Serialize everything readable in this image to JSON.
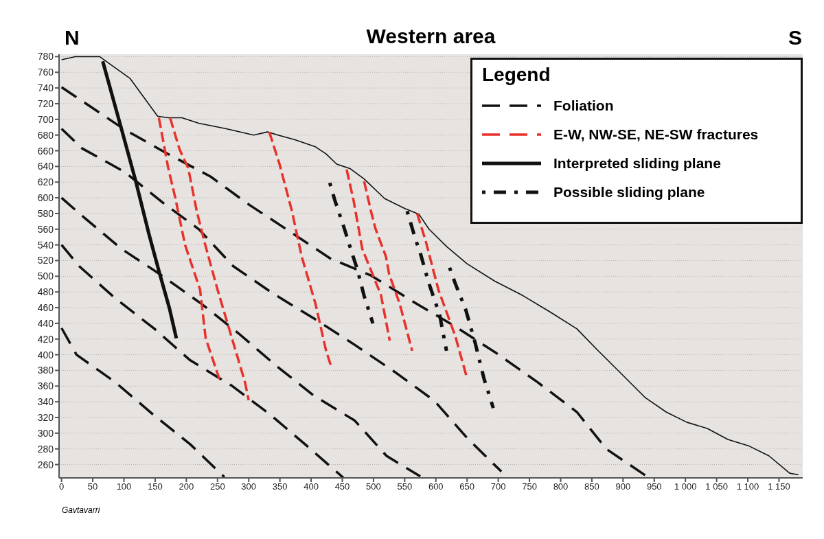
{
  "chart_data": {
    "type": "line",
    "title": "Western area",
    "legend_title": "Legend",
    "annotations": [
      "N",
      "S",
      "Gavtavarri"
    ],
    "xlim": [
      -4,
      1188
    ],
    "ylim": [
      243,
      783
    ],
    "xticks": [
      0,
      50,
      100,
      150,
      200,
      250,
      300,
      350,
      400,
      450,
      500,
      550,
      600,
      650,
      700,
      750,
      800,
      850,
      900,
      950,
      {
        "value": 1000,
        "label": "1 000"
      },
      {
        "value": 1050,
        "label": "1 050"
      },
      {
        "value": 1100,
        "label": "1 100"
      },
      {
        "value": 1150,
        "label": "1 150"
      }
    ],
    "yticks": [
      260,
      280,
      300,
      320,
      340,
      360,
      380,
      400,
      420,
      440,
      460,
      480,
      500,
      520,
      540,
      560,
      580,
      600,
      620,
      640,
      660,
      680,
      700,
      720,
      740,
      760,
      780
    ],
    "grid": "y",
    "legend": "top right",
    "marker": "none",
    "series": [
      {
        "type": "line",
        "color": "#111111",
        "line_style": "solid",
        "x": [
          0,
          22,
          61,
          75,
          110,
          154,
          171,
          193,
          220,
          264,
          308,
          330,
          347,
          374,
          407,
          424,
          441,
          463,
          485,
          518,
          551,
          573,
          589,
          617,
          650,
          694,
          738,
          782,
          826,
          859,
          892,
          936,
          969,
          1002,
          1035,
          1068,
          1101,
          1134,
          1167,
          1181
        ],
        "values": [
          776,
          780,
          780,
          772,
          752,
          704,
          702,
          702,
          695,
          688,
          680,
          684,
          680,
          674,
          665,
          656,
          643,
          637,
          624,
          599,
          586,
          579,
          560,
          538,
          516,
          494,
          476,
          455,
          433,
          406,
          380,
          345,
          327,
          314,
          306,
          292,
          284,
          271,
          249,
          247
        ]
      },
      {
        "type": "line",
        "name": "Foliation",
        "color": "#111111",
        "line_style": "dashed",
        "x": [
          0,
          101,
          168,
          239,
          301,
          366,
          430,
          496,
          567,
          633,
          697,
          763,
          826,
          873,
          938
        ],
        "values": [
          741,
          687,
          657,
          627,
          591,
          557,
          523,
          501,
          466,
          435,
          402,
          365,
          327,
          280,
          245
        ]
      },
      {
        "type": "line",
        "color": "#111111",
        "line_style": "dashed",
        "x": [
          0,
          33,
          101,
          162,
          220,
          275,
          339,
          405,
          471,
          536,
          598,
          650,
          705
        ],
        "values": [
          688,
          663,
          633,
          594,
          560,
          513,
          478,
          446,
          412,
          377,
          341,
          294,
          251
        ]
      },
      {
        "type": "line",
        "color": "#111111",
        "line_style": "dashed",
        "x": [
          0,
          36,
          96,
          157,
          224,
          284,
          344,
          404,
          470,
          521,
          575
        ],
        "values": [
          600,
          575,
          535,
          503,
          465,
          427,
          386,
          348,
          316,
          271,
          245
        ]
      },
      {
        "type": "line",
        "color": "#111111",
        "line_style": "dashed",
        "x": [
          0,
          28,
          86,
          149,
          206,
          272,
          334,
          393,
          452
        ],
        "values": [
          540,
          513,
          472,
          433,
          393,
          361,
          324,
          284,
          243
        ]
      },
      {
        "type": "line",
        "color": "#111111",
        "line_style": "dashed",
        "x": [
          0,
          24,
          86,
          145,
          206,
          261
        ],
        "values": [
          434,
          400,
          365,
          325,
          286,
          244
        ]
      },
      {
        "type": "line",
        "name": "E-W, NW-SE, NE-SW fractures",
        "color": "#e8312a",
        "line_style": "dashed",
        "x": [
          156,
          171,
          182,
          198,
          222,
          231,
          253
        ],
        "values": [
          702,
          638,
          601,
          540,
          483,
          421,
          369
        ]
      },
      {
        "type": "line",
        "color": "#e8312a",
        "line_style": "dashed",
        "x": [
          174,
          189,
          203,
          217,
          229,
          250,
          272,
          294,
          300
        ],
        "values": [
          702,
          662,
          638,
          582,
          544,
          483,
          424,
          365,
          342
        ]
      },
      {
        "type": "line",
        "color": "#e8312a",
        "line_style": "dashed",
        "x": [
          333,
          349,
          369,
          385,
          407,
          424,
          433
        ],
        "values": [
          684,
          644,
          584,
          525,
          465,
          405,
          383
        ]
      },
      {
        "type": "line",
        "color": "#e8312a",
        "line_style": "dashed",
        "x": [
          457,
          468,
          482,
          512,
          526
        ],
        "values": [
          636,
          597,
          535,
          476,
          418
        ]
      },
      {
        "type": "line",
        "color": "#e8312a",
        "line_style": "dashed",
        "x": [
          485,
          496,
          503,
          520,
          525,
          542,
          562
        ],
        "values": [
          621,
          583,
          561,
          525,
          503,
          465,
          405
        ]
      },
      {
        "type": "line",
        "color": "#e8312a",
        "line_style": "dashed",
        "x": [
          570,
          584,
          604,
          631,
          650
        ],
        "values": [
          580,
          544,
          483,
          424,
          370
        ]
      },
      {
        "type": "line",
        "name": "Interpreted sliding plane",
        "color": "#111111",
        "line_style": "solid",
        "x": [
          66,
          96,
          119,
          140,
          156,
          173,
          184
        ],
        "values": [
          774,
          688,
          621,
          554,
          507,
          459,
          421
        ]
      },
      {
        "type": "line",
        "name": "Possible sliding plane",
        "color": "#111111",
        "line_style": "dotted",
        "x": [
          430,
          438,
          452,
          465,
          474,
          485,
          499
        ],
        "values": [
          619,
          597,
          564,
          531,
          509,
          475,
          440
        ]
      },
      {
        "type": "line",
        "color": "#111111",
        "line_style": "dotted",
        "x": [
          554,
          567,
          576,
          588,
          606,
          617
        ],
        "values": [
          583,
          548,
          527,
          493,
          451,
          405
        ]
      },
      {
        "type": "line",
        "color": "#111111",
        "line_style": "dotted",
        "x": [
          622,
          631,
          648,
          663,
          677,
          692
        ],
        "values": [
          511,
          491,
          457,
          415,
          370,
          332
        ]
      }
    ]
  }
}
